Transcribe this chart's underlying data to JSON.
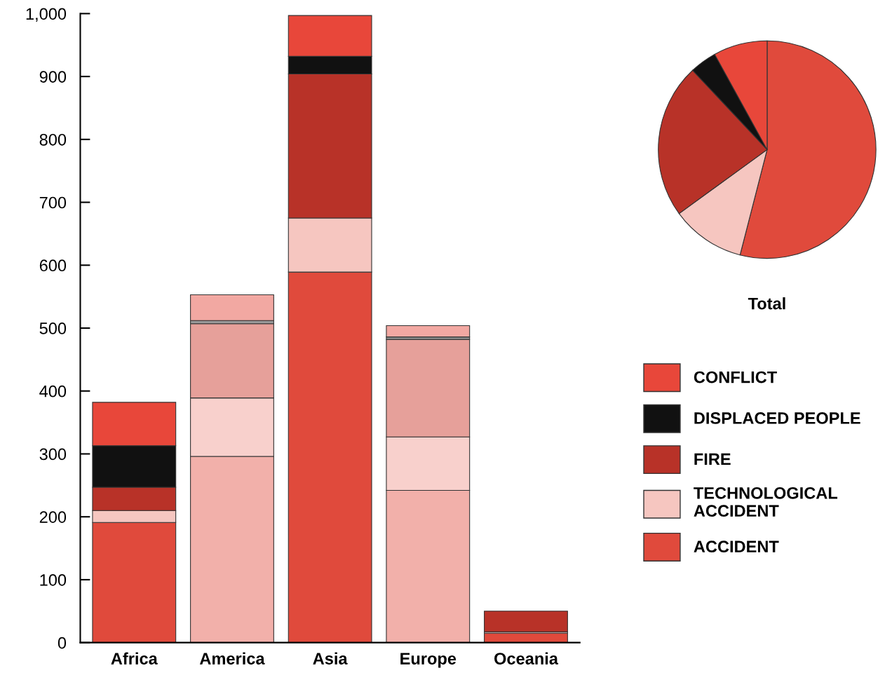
{
  "chart_data": [
    {
      "type": "bar",
      "stacked": true,
      "categories": [
        "Africa",
        "America",
        "Asia",
        "Europe",
        "Oceania"
      ],
      "series": [
        {
          "name": "ACCIDENT",
          "colors": [
            "#e04a3c",
            "#f2b0aa",
            "#e04a3c",
            "#f2b0aa",
            "#e04a3c"
          ],
          "values": [
            191,
            296,
            589,
            242,
            15
          ]
        },
        {
          "name": "TECHNOLOGICAL\nACCIDENT",
          "colors": [
            "#f6c6c0",
            "#f8d0cc",
            "#f6c6c0",
            "#f8d0cc",
            "#f6c6c0"
          ],
          "values": [
            19,
            93,
            86,
            85,
            2
          ]
        },
        {
          "name": "FIRE",
          "colors": [
            "#b83228",
            "#e6a09a",
            "#b83228",
            "#e6a09a",
            "#b83228"
          ],
          "values": [
            37,
            118,
            229,
            155,
            33
          ]
        },
        {
          "name": "DISPLACED PEOPLE",
          "colors": [
            "#111111",
            "#999999",
            "#111111",
            "#999999",
            "#111111"
          ],
          "values": [
            66,
            5,
            28,
            4,
            null
          ]
        },
        {
          "name": "CONFLICT",
          "colors": [
            "#e8473a",
            "#f2a8a2",
            "#e8473a",
            "#f2a8a2",
            "#e8473a"
          ],
          "values": [
            69,
            41,
            65,
            18,
            null
          ]
        }
      ],
      "ylim": [
        0,
        1000
      ],
      "yticks": [
        0,
        100,
        200,
        300,
        400,
        500,
        600,
        700,
        800,
        {
          "value": 900,
          "label": "900"
        },
        {
          "value": 1000,
          "label": "1,000"
        }
      ],
      "legend": "right",
      "grid": false
    },
    {
      "type": "pie",
      "title": "Total",
      "categories": [
        null,
        null,
        null,
        null,
        null
      ],
      "values": [
        54,
        11,
        23,
        4,
        8
      ],
      "colors": [
        "#e04a3c",
        "#f6c6c0",
        "#b83228",
        "#111111",
        "#e8473a"
      ]
    }
  ]
}
